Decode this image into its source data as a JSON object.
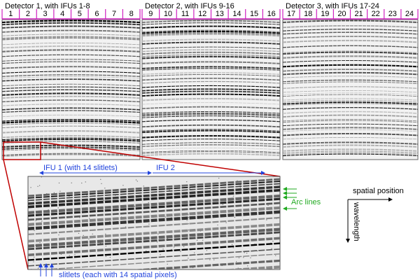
{
  "panels": [
    {
      "title": "Detector 1, with IFUs 1-8",
      "ifus": [
        1,
        2,
        3,
        4,
        5,
        6,
        7,
        8
      ]
    },
    {
      "title": "Detector 2, with IFUs 9-16",
      "ifus": [
        9,
        10,
        11,
        12,
        13,
        14,
        15,
        16
      ]
    },
    {
      "title": "Detector 3, with IFUs 17-24",
      "ifus": [
        17,
        18,
        19,
        20,
        21,
        22,
        23,
        24
      ]
    }
  ],
  "zoom": {
    "ifu1": "IFU 1 (with 14 slitlets)",
    "ifu2": "IFU 2",
    "arc_lines": "Arc lines",
    "slitlets": "slitlets (each with 14 spatial pixels)"
  },
  "axes": {
    "x": "spatial position",
    "y": "wavelength"
  }
}
